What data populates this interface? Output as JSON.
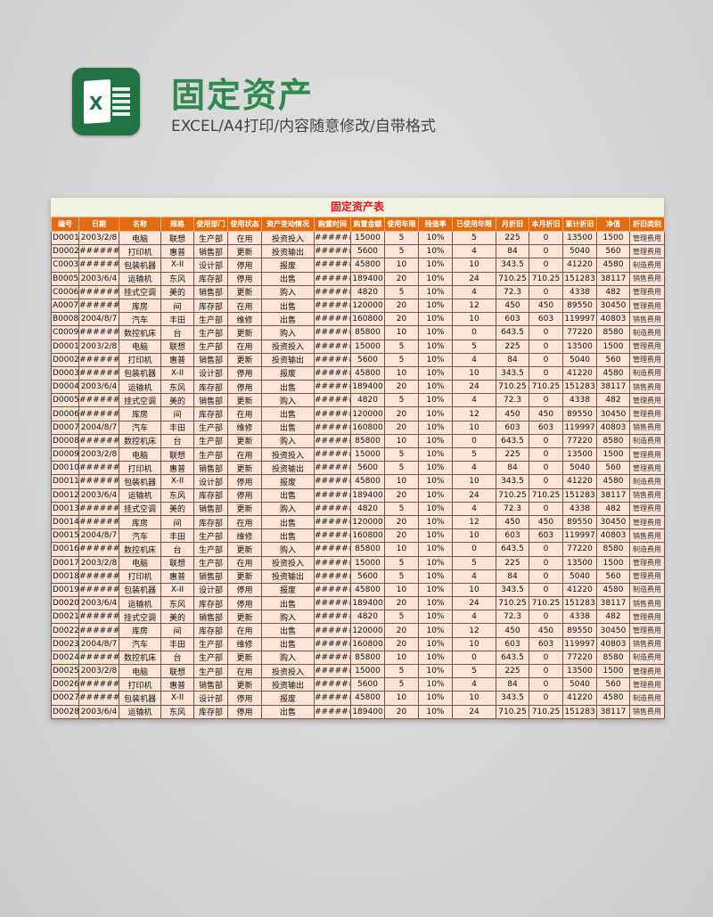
{
  "header": {
    "title": "固定资产",
    "subtitle": "EXCEL/A4打印/内容随意修改/自带格式",
    "logo_icon": "excel-icon",
    "logo_letter": "X",
    "brand_color": "#217346"
  },
  "table": {
    "title": "固定资产表",
    "columns": [
      "编号",
      "日期",
      "名称",
      "规格",
      "使用部门",
      "使用状态",
      "资产变动情况",
      "购置时间",
      "购置金额",
      "使用年限",
      "残值率",
      "已使用年限",
      "月折旧",
      "本月折旧",
      "累计折旧",
      "净值",
      "折旧类别"
    ],
    "rows": [
      [
        "D0001",
        "2003/2/8",
        "电脑",
        "联想",
        "生产部",
        "在用",
        "投资投入",
        "######",
        "15000",
        "5",
        "10%",
        "5",
        "225",
        "0",
        "13500",
        "1500",
        "管理费用"
      ],
      [
        "D0002",
        "#######",
        "打印机",
        "惠普",
        "销售部",
        "更新",
        "投资输出",
        "######",
        "5600",
        "5",
        "10%",
        "4",
        "84",
        "0",
        "5040",
        "560",
        "管理费用"
      ],
      [
        "C0003",
        "#######",
        "包装机器",
        "X-II",
        "设计部",
        "停用",
        "报废",
        "######",
        "45800",
        "10",
        "10%",
        "10",
        "343.5",
        "0",
        "41220",
        "4580",
        "制造费用"
      ],
      [
        "B0005",
        "2003/6/4",
        "运输机",
        "东风",
        "库存部",
        "停用",
        "出售",
        "######",
        "189400",
        "20",
        "10%",
        "24",
        "710.25",
        "710.25",
        "151283",
        "38117",
        "销售费用"
      ],
      [
        "C0006",
        "#######",
        "挂式空调",
        "美的",
        "销售部",
        "更新",
        "购入",
        "######",
        "4820",
        "5",
        "10%",
        "4",
        "72.3",
        "0",
        "4338",
        "482",
        "管理费用"
      ],
      [
        "A0007",
        "#######",
        "库房",
        "间",
        "库存部",
        "在用",
        "出售",
        "######",
        "120000",
        "20",
        "10%",
        "12",
        "450",
        "450",
        "89550",
        "30450",
        "管理费用"
      ],
      [
        "B0008",
        "2004/8/7",
        "汽车",
        "丰田",
        "生产部",
        "维修",
        "出售",
        "######",
        "160800",
        "20",
        "10%",
        "10",
        "603",
        "603",
        "119997",
        "40803",
        "销售费用"
      ],
      [
        "C0009",
        "#######",
        "数控机床",
        "台",
        "生产部",
        "更新",
        "购入",
        "######",
        "85800",
        "10",
        "10%",
        "0",
        "643.5",
        "0",
        "77220",
        "8580",
        "制造费用"
      ],
      [
        "D0001",
        "2003/2/8",
        "电脑",
        "联想",
        "生产部",
        "在用",
        "投资投入",
        "######",
        "15000",
        "5",
        "10%",
        "5",
        "225",
        "0",
        "13500",
        "1500",
        "管理费用"
      ],
      [
        "D0002",
        "#######",
        "打印机",
        "惠普",
        "销售部",
        "更新",
        "投资输出",
        "######",
        "5600",
        "5",
        "10%",
        "4",
        "84",
        "0",
        "5040",
        "560",
        "管理费用"
      ],
      [
        "D0003",
        "#######",
        "包装机器",
        "X-II",
        "设计部",
        "停用",
        "报废",
        "######",
        "45800",
        "10",
        "10%",
        "10",
        "343.5",
        "0",
        "41220",
        "4580",
        "制造费用"
      ],
      [
        "D0004",
        "2003/6/4",
        "运输机",
        "东风",
        "库存部",
        "停用",
        "出售",
        "######",
        "189400",
        "20",
        "10%",
        "24",
        "710.25",
        "710.25",
        "151283",
        "38117",
        "销售费用"
      ],
      [
        "D0005",
        "#######",
        "挂式空调",
        "美的",
        "销售部",
        "更新",
        "购入",
        "######",
        "4820",
        "5",
        "10%",
        "4",
        "72.3",
        "0",
        "4338",
        "482",
        "管理费用"
      ],
      [
        "D0006",
        "#######",
        "库房",
        "间",
        "库存部",
        "在用",
        "出售",
        "######",
        "120000",
        "20",
        "10%",
        "12",
        "450",
        "450",
        "89550",
        "30450",
        "管理费用"
      ],
      [
        "D0007",
        "2004/8/7",
        "汽车",
        "丰田",
        "生产部",
        "维修",
        "出售",
        "######",
        "160800",
        "20",
        "10%",
        "10",
        "603",
        "603",
        "119997",
        "40803",
        "销售费用"
      ],
      [
        "D0008",
        "#######",
        "数控机床",
        "台",
        "生产部",
        "更新",
        "购入",
        "######",
        "85800",
        "10",
        "10%",
        "0",
        "643.5",
        "0",
        "77220",
        "8580",
        "制造费用"
      ],
      [
        "D0009",
        "2003/2/8",
        "电脑",
        "联想",
        "生产部",
        "在用",
        "投资投入",
        "######",
        "15000",
        "5",
        "10%",
        "5",
        "225",
        "0",
        "13500",
        "1500",
        "管理费用"
      ],
      [
        "D0010",
        "#######",
        "打印机",
        "惠普",
        "销售部",
        "更新",
        "投资输出",
        "######",
        "5600",
        "5",
        "10%",
        "4",
        "84",
        "0",
        "5040",
        "560",
        "管理费用"
      ],
      [
        "D0011",
        "#######",
        "包装机器",
        "X-II",
        "设计部",
        "停用",
        "报废",
        "######",
        "45800",
        "10",
        "10%",
        "10",
        "343.5",
        "0",
        "41220",
        "4580",
        "制造费用"
      ],
      [
        "D0012",
        "2003/6/4",
        "运输机",
        "东风",
        "库存部",
        "停用",
        "出售",
        "######",
        "189400",
        "20",
        "10%",
        "24",
        "710.25",
        "710.25",
        "151283",
        "38117",
        "销售费用"
      ],
      [
        "D0013",
        "#######",
        "挂式空调",
        "美的",
        "销售部",
        "更新",
        "购入",
        "######",
        "4820",
        "5",
        "10%",
        "4",
        "72.3",
        "0",
        "4338",
        "482",
        "管理费用"
      ],
      [
        "D0014",
        "#######",
        "库房",
        "间",
        "库存部",
        "在用",
        "出售",
        "######",
        "120000",
        "20",
        "10%",
        "12",
        "450",
        "450",
        "89550",
        "30450",
        "管理费用"
      ],
      [
        "D0015",
        "2004/8/7",
        "汽车",
        "丰田",
        "生产部",
        "维修",
        "出售",
        "######",
        "160800",
        "20",
        "10%",
        "10",
        "603",
        "603",
        "119997",
        "40803",
        "销售费用"
      ],
      [
        "D0016",
        "#######",
        "数控机床",
        "台",
        "生产部",
        "更新",
        "购入",
        "######",
        "85800",
        "10",
        "10%",
        "0",
        "643.5",
        "0",
        "77220",
        "8580",
        "制造费用"
      ],
      [
        "D0017",
        "2003/2/8",
        "电脑",
        "联想",
        "生产部",
        "在用",
        "投资投入",
        "######",
        "15000",
        "5",
        "10%",
        "5",
        "225",
        "0",
        "13500",
        "1500",
        "管理费用"
      ],
      [
        "D0018",
        "#######",
        "打印机",
        "惠普",
        "销售部",
        "更新",
        "投资输出",
        "######",
        "5600",
        "5",
        "10%",
        "4",
        "84",
        "0",
        "5040",
        "560",
        "管理费用"
      ],
      [
        "D0019",
        "#######",
        "包装机器",
        "X-II",
        "设计部",
        "停用",
        "报废",
        "######",
        "45800",
        "10",
        "10%",
        "10",
        "343.5",
        "0",
        "41220",
        "4580",
        "制造费用"
      ],
      [
        "D0020",
        "2003/6/4",
        "运输机",
        "东风",
        "库存部",
        "停用",
        "出售",
        "######",
        "189400",
        "20",
        "10%",
        "24",
        "710.25",
        "710.25",
        "151283",
        "38117",
        "销售费用"
      ],
      [
        "D0021",
        "#######",
        "挂式空调",
        "美的",
        "销售部",
        "更新",
        "购入",
        "######",
        "4820",
        "5",
        "10%",
        "4",
        "72.3",
        "0",
        "4338",
        "482",
        "管理费用"
      ],
      [
        "D0022",
        "#######",
        "库房",
        "间",
        "库存部",
        "在用",
        "出售",
        "######",
        "120000",
        "20",
        "10%",
        "12",
        "450",
        "450",
        "89550",
        "30450",
        "管理费用"
      ],
      [
        "D0023",
        "2004/8/7",
        "汽车",
        "丰田",
        "生产部",
        "维修",
        "出售",
        "######",
        "160800",
        "20",
        "10%",
        "10",
        "603",
        "603",
        "119997",
        "40803",
        "销售费用"
      ],
      [
        "D0024",
        "#######",
        "数控机床",
        "台",
        "生产部",
        "更新",
        "购入",
        "######",
        "85800",
        "10",
        "10%",
        "0",
        "643.5",
        "0",
        "77220",
        "8580",
        "制造费用"
      ],
      [
        "D0025",
        "2003/2/8",
        "电脑",
        "联想",
        "生产部",
        "在用",
        "投资投入",
        "######",
        "15000",
        "5",
        "10%",
        "5",
        "225",
        "0",
        "13500",
        "1500",
        "管理费用"
      ],
      [
        "D0026",
        "#######",
        "打印机",
        "惠普",
        "销售部",
        "更新",
        "投资输出",
        "######",
        "5600",
        "5",
        "10%",
        "4",
        "84",
        "0",
        "5040",
        "560",
        "管理费用"
      ],
      [
        "D0027",
        "#######",
        "包装机器",
        "X-II",
        "设计部",
        "停用",
        "报废",
        "######",
        "45800",
        "10",
        "10%",
        "10",
        "343.5",
        "0",
        "41220",
        "4580",
        "制造费用"
      ],
      [
        "D0028",
        "2003/6/4",
        "运输机",
        "东风",
        "库存部",
        "停用",
        "出售",
        "######",
        "189400",
        "20",
        "10%",
        "24",
        "710.25",
        "710.25",
        "151283",
        "38117",
        "销售费用"
      ]
    ],
    "colors": {
      "header_bg": "#e26a10",
      "row_bg": "#fce4d6",
      "title_color": "#e8141b"
    }
  }
}
